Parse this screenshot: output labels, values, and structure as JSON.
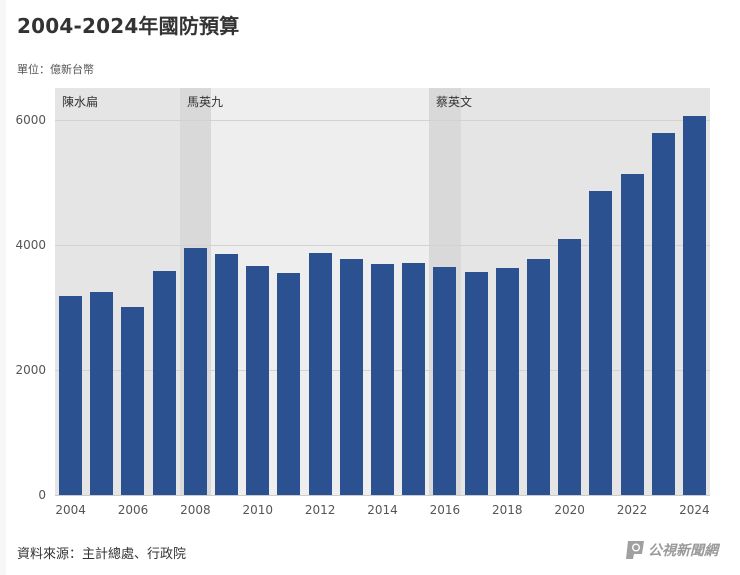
{
  "title": "2004-2024年國防預算",
  "unit_label": "單位：億新台幣",
  "source_label": "資料來源：主計總處、行政院",
  "logo_text": "公視新聞網",
  "colors": {
    "bar": "#2c5191",
    "plot_bg": "#e5e5e5",
    "ma_region_bg": "#eeeeee",
    "transition_band": "#d9d9d9"
  },
  "regions": [
    {
      "label": "陳水扁",
      "start_year": 2004,
      "end_year": 2008
    },
    {
      "label": "馬英九",
      "start_year": 2008,
      "end_year": 2016
    },
    {
      "label": "蔡英文",
      "start_year": 2016,
      "end_year": 2024
    }
  ],
  "chart_data": {
    "type": "bar",
    "title": "2004-2024年國防預算",
    "subtitle": "單位：億新台幣",
    "xlabel": "",
    "ylabel": "億新台幣",
    "categories": [
      "2004",
      "2005",
      "2006",
      "2007",
      "2008",
      "2009",
      "2010",
      "2011",
      "2012",
      "2013",
      "2014",
      "2015",
      "2016",
      "2017",
      "2018",
      "2019",
      "2020",
      "2021",
      "2022",
      "2023",
      "2024"
    ],
    "values": [
      3190,
      3250,
      3010,
      3580,
      3960,
      3860,
      3670,
      3560,
      3870,
      3780,
      3690,
      3710,
      3650,
      3570,
      3640,
      3780,
      4090,
      4870,
      5130,
      5790,
      6070
    ],
    "ylim": [
      0,
      6500
    ],
    "yticks": [
      "0",
      "2000",
      "4000",
      "6000"
    ],
    "xticks": [
      "2004",
      "2006",
      "2008",
      "2010",
      "2012",
      "2014",
      "2016",
      "2018",
      "2020",
      "2022",
      "2024"
    ],
    "grid": true,
    "legend": "none",
    "annotations": [
      "陳水扁",
      "馬英九",
      "蔡英文"
    ],
    "source": "資料來源：主計總處、行政院"
  }
}
